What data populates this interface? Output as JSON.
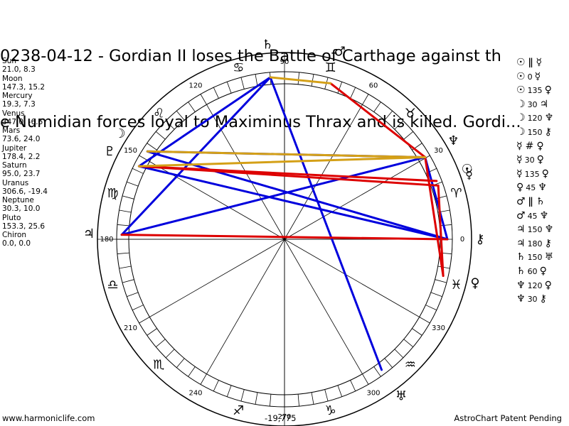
{
  "title": {
    "line1": "0238-04-12 - Gordian II loses the Battle of Carthage against th",
    "line2": "e Numidian forces loyal to Maximinus Thrax and is killed. Gordi..."
  },
  "planet_positions": [
    {
      "name": "Sun",
      "values": "21.0, 8.3"
    },
    {
      "name": "Moon",
      "values": "147.3, 15.2"
    },
    {
      "name": "Mercury",
      "values": "19.3, 7.3"
    },
    {
      "name": "Venus",
      "values": "347.0, -6.6"
    },
    {
      "name": "Mars",
      "values": "73.6, 24.0"
    },
    {
      "name": "Jupiter",
      "values": "178.4, 2.2"
    },
    {
      "name": "Saturn",
      "values": "95.0, 23.7"
    },
    {
      "name": "Uranus",
      "values": "306.6, -19.4"
    },
    {
      "name": "Neptune",
      "values": "30.3, 10.0"
    },
    {
      "name": "Pluto",
      "values": "153.3, 25.6"
    },
    {
      "name": "Chiron",
      "values": "0.0, 0.0"
    }
  ],
  "aspects": [
    {
      "p1": "☉",
      "angle": "ǁ",
      "p2": "☿"
    },
    {
      "p1": "☉",
      "angle": "0",
      "p2": "☿"
    },
    {
      "p1": "☉",
      "angle": "135",
      "p2": "♀"
    },
    {
      "p1": "☽",
      "angle": "30",
      "p2": "♃"
    },
    {
      "p1": "☽",
      "angle": "120",
      "p2": "♆"
    },
    {
      "p1": "☽",
      "angle": "150",
      "p2": "⚷"
    },
    {
      "p1": "☿",
      "angle": "#",
      "p2": "♀"
    },
    {
      "p1": "☿",
      "angle": "30",
      "p2": "♀"
    },
    {
      "p1": "☿",
      "angle": "135",
      "p2": "♀"
    },
    {
      "p1": "♀",
      "angle": "45",
      "p2": "♆"
    },
    {
      "p1": "♂",
      "angle": "ǁ",
      "p2": "♄"
    },
    {
      "p1": "♂",
      "angle": "45",
      "p2": "♆"
    },
    {
      "p1": "♃",
      "angle": "150",
      "p2": "♆"
    },
    {
      "p1": "♃",
      "angle": "180",
      "p2": "⚷"
    },
    {
      "p1": "♄",
      "angle": "150",
      "p2": "♅"
    },
    {
      "p1": "♄",
      "angle": "60",
      "p2": "♀"
    },
    {
      "p1": "♆",
      "angle": "120",
      "p2": "♀"
    },
    {
      "p1": "♆",
      "angle": "30",
      "p2": "⚷"
    }
  ],
  "wheel": {
    "degree_labels": [
      "0",
      "30",
      "60",
      "90",
      "120",
      "150",
      "180",
      "210",
      "240",
      "270",
      "300",
      "330"
    ],
    "zodiac_signs": [
      {
        "sign": "aries-sign",
        "glyph": "♈",
        "longitude": 15
      },
      {
        "sign": "taurus-sign",
        "glyph": "♉",
        "longitude": 45
      },
      {
        "sign": "gemini-sign",
        "glyph": "♊",
        "longitude": 75
      },
      {
        "sign": "cancer-sign",
        "glyph": "♋",
        "longitude": 105
      },
      {
        "sign": "leo-sign",
        "glyph": "♌",
        "longitude": 135
      },
      {
        "sign": "virgo-sign",
        "glyph": "♍",
        "longitude": 165
      },
      {
        "sign": "libra-sign",
        "glyph": "♎",
        "longitude": 195
      },
      {
        "sign": "scorpio-sign",
        "glyph": "♏",
        "longitude": 225
      },
      {
        "sign": "sagittarius-sign",
        "glyph": "♐",
        "longitude": 255
      },
      {
        "sign": "capricorn-sign",
        "glyph": "♑",
        "longitude": 285
      },
      {
        "sign": "aquarius-sign",
        "glyph": "♒",
        "longitude": 315
      },
      {
        "sign": "pisces-sign",
        "glyph": "♓",
        "longitude": 345
      }
    ],
    "bodies": [
      {
        "name": "sun",
        "glyph": "☉",
        "longitude": 21.0
      },
      {
        "name": "moon",
        "glyph": "☽",
        "longitude": 147.3
      },
      {
        "name": "mercury",
        "glyph": "☿",
        "longitude": 19.3
      },
      {
        "name": "venus",
        "glyph": "♀",
        "longitude": 347.0
      },
      {
        "name": "mars",
        "glyph": "♂",
        "longitude": 73.6
      },
      {
        "name": "jupiter",
        "glyph": "♃",
        "longitude": 178.4
      },
      {
        "name": "saturn",
        "glyph": "♄",
        "longitude": 95.0
      },
      {
        "name": "uranus",
        "glyph": "♅",
        "longitude": 306.6
      },
      {
        "name": "neptune",
        "glyph": "♆",
        "longitude": 30.3
      },
      {
        "name": "pluto",
        "glyph": "♇",
        "longitude": 153.3
      },
      {
        "name": "chiron",
        "glyph": "⚷",
        "longitude": 0.0
      }
    ],
    "aspect_lines": [
      {
        "a": "saturn",
        "b": "uranus",
        "color": "#0000dd"
      },
      {
        "a": "saturn",
        "b": "pluto",
        "color": "#0000dd"
      },
      {
        "a": "saturn",
        "b": "jupiter",
        "color": "#0000dd"
      },
      {
        "a": "jupiter",
        "b": "neptune",
        "color": "#0000dd"
      },
      {
        "a": "moon",
        "b": "neptune",
        "color": "#0000dd"
      },
      {
        "a": "neptune",
        "b": "chiron",
        "color": "#0000dd"
      },
      {
        "a": "pluto",
        "b": "chiron",
        "color": "#0000dd"
      },
      {
        "a": "moon",
        "b": "chiron",
        "color": "#0000dd"
      },
      {
        "a": "mars",
        "b": "neptune",
        "color": "#dd0000"
      },
      {
        "a": "jupiter",
        "b": "chiron",
        "color": "#dd0000"
      },
      {
        "a": "pluto",
        "b": "mercury",
        "color": "#dd0000"
      },
      {
        "a": "pluto",
        "b": "sun",
        "color": "#dd0000"
      },
      {
        "a": "neptune",
        "b": "venus",
        "color": "#dd0000"
      },
      {
        "a": "mercury",
        "b": "venus",
        "color": "#dd0000"
      },
      {
        "a": "moon",
        "b": "neptune",
        "color": "#d4a017"
      },
      {
        "a": "pluto",
        "b": "neptune",
        "color": "#d4a017"
      },
      {
        "a": "saturn",
        "b": "mars",
        "color": "#d4a017"
      }
    ]
  },
  "footer": {
    "site": "www.harmoniclife.com",
    "value": "-19,775",
    "notice": "AstroChart Patent Pending"
  }
}
